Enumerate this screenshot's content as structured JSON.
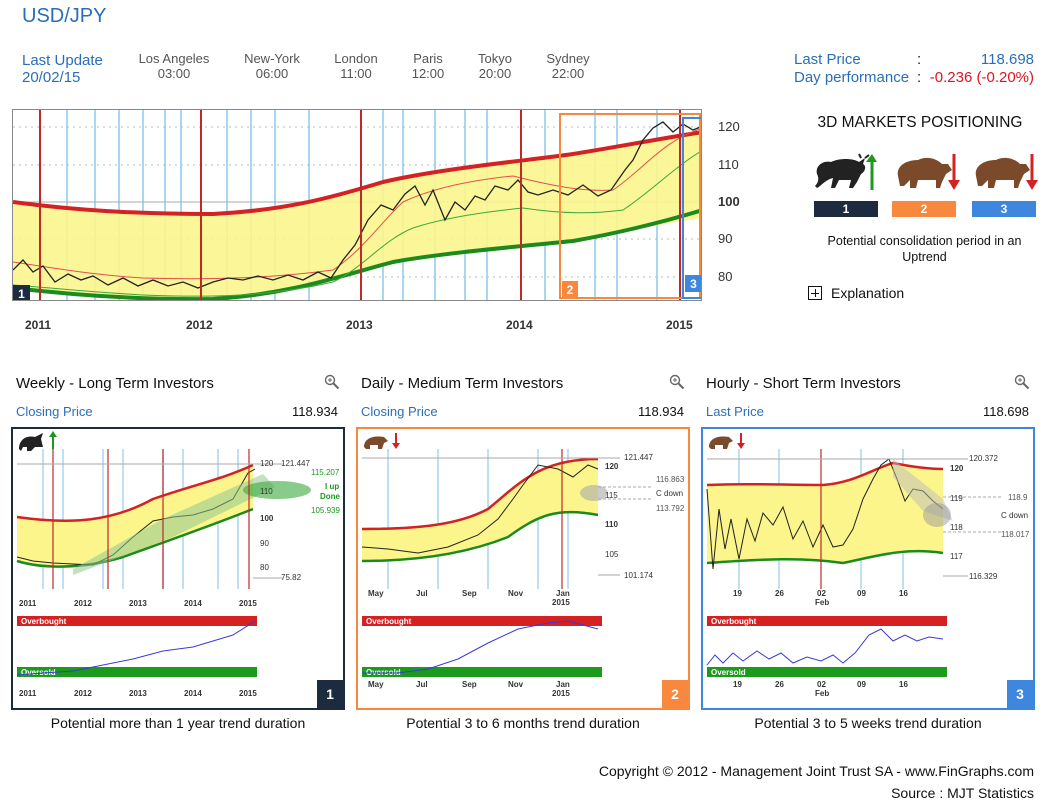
{
  "header": {
    "title": "USD/JPY",
    "last_update_label": "Last Update",
    "last_update_date": "20/02/15",
    "cities": [
      {
        "name": "Los Angeles",
        "time": "03:00"
      },
      {
        "name": "New-York",
        "time": "06:00"
      },
      {
        "name": "London",
        "time": "11:00"
      },
      {
        "name": "Paris",
        "time": "12:00"
      },
      {
        "name": "Tokyo",
        "time": "20:00"
      },
      {
        "name": "Sydney",
        "time": "22:00"
      }
    ],
    "last_price_label": "Last Price",
    "last_price_value": "118.698",
    "day_perf_label": "Day performance",
    "day_perf_value": "-0.236 (-0.20%)",
    "colon": ":"
  },
  "main_chart": {
    "y_ticks": [
      "120",
      "110",
      "100",
      "90",
      "80"
    ],
    "x_ticks": [
      "2011",
      "2012",
      "2013",
      "2014",
      "2015"
    ],
    "markers": [
      "1",
      "2",
      "3"
    ]
  },
  "positioning": {
    "title": "3D MARKETS POSITIONING",
    "icons": [
      "bull-icon",
      "bear-icon",
      "bear-icon"
    ],
    "boxes": [
      {
        "label": "1",
        "color": "#1c2b3e"
      },
      {
        "label": "2",
        "color": "#f7883d"
      },
      {
        "label": "3",
        "color": "#3e86de"
      }
    ],
    "text": "Potential consolidation period in an Uptrend",
    "explanation_label": "Explanation"
  },
  "panels": [
    {
      "title": "Weekly - Long Term Investors",
      "price_label": "Closing Price",
      "price_value": "118.934",
      "number": "1",
      "color": "#1c2b3e",
      "caption": "Potential more than 1 year trend duration",
      "x_ticks": [
        "2011",
        "2012",
        "2013",
        "2014",
        "2015"
      ],
      "annotations": [
        "121.447",
        "115.207",
        "I up",
        "Done",
        "105.939",
        "75.82",
        "120",
        "110",
        "100",
        "90",
        "80"
      ],
      "band_top": "Overbought",
      "band_bottom": "Oversold"
    },
    {
      "title": "Daily - Medium Term Investors",
      "price_label": "Closing Price",
      "price_value": "118.934",
      "number": "2",
      "color": "#f7883d",
      "caption": "Potential 3 to 6 months trend duration",
      "x_ticks": [
        "May",
        "Jul",
        "Sep",
        "Nov",
        "Jan",
        "2015"
      ],
      "annotations": [
        "121.447",
        "116.863",
        "C down",
        "113.792",
        "101.174",
        "120",
        "115",
        "110",
        "105"
      ],
      "band_top": "Overbought",
      "band_bottom": "Oversold"
    },
    {
      "title": "Hourly - Short Term Investors",
      "price_label": "Last Price",
      "price_value": "118.698",
      "number": "3",
      "color": "#3e86de",
      "caption": "Potential 3 to 5 weeks trend duration",
      "x_ticks": [
        "19",
        "26",
        "02",
        "09",
        "16",
        "Feb"
      ],
      "annotations": [
        "120.372",
        "118.9",
        "C down",
        "118.017",
        "116.329",
        "120",
        "119",
        "118",
        "117"
      ],
      "band_top": "Overbought",
      "band_bottom": "Oversold"
    }
  ],
  "footer": {
    "copyright": "Copyright © 2012 - Management Joint Trust SA - www.FinGraphs.com",
    "source": "Source : MJT Statistics"
  }
}
